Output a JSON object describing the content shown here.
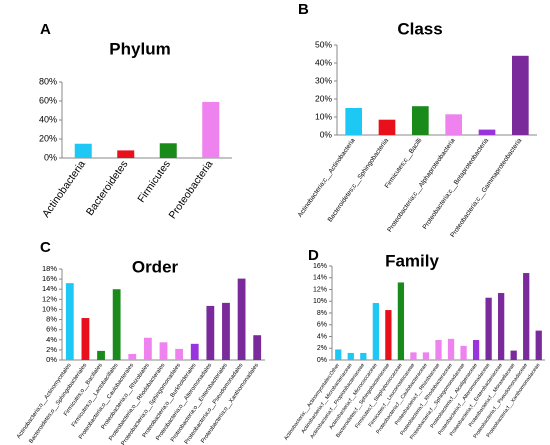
{
  "chart_data": [
    {
      "type": "bar",
      "panel": "A",
      "title": "Phylum",
      "categories": [
        "Actinobacteria",
        "Bacteroidetes",
        "Firmicutes",
        "Proteobacteria"
      ],
      "values": [
        15,
        8,
        15.5,
        59
      ],
      "colors": [
        "#1ec8f5",
        "#e8101a",
        "#1a8a1a",
        "#ee82ee"
      ],
      "ylim": [
        0,
        80
      ],
      "yticks": [
        {
          "value": 0,
          "label": "0%"
        },
        {
          "value": 20,
          "label": "20%"
        },
        {
          "value": 40,
          "label": "40%"
        },
        {
          "value": 60,
          "label": "60%"
        },
        {
          "value": 80,
          "label": "80%"
        }
      ]
    },
    {
      "type": "bar",
      "panel": "B",
      "title": "Class",
      "categories": [
        "Actinobacteria;c__Actinobacteria",
        "Bacteroidetes;c__Sphingobacteriia",
        "Firmicutes;c__Bacilli",
        "Proteobacteria;c__Alphaproteobacteria",
        "Proteobacteria;c__Betaproteobacteria",
        "Proteobacteria;c__Gammaproteobacteria"
      ],
      "values": [
        15,
        8.5,
        16,
        11.5,
        3,
        44
      ],
      "colors": [
        "#1ec8f5",
        "#e8101a",
        "#1a8a1a",
        "#ee82ee",
        "#9933dd",
        "#7a2a9a"
      ],
      "ylim": [
        0,
        50
      ],
      "yticks": [
        {
          "value": 0,
          "label": "0%"
        },
        {
          "value": 10,
          "label": "10%"
        },
        {
          "value": 20,
          "label": "20%"
        },
        {
          "value": 30,
          "label": "30%"
        },
        {
          "value": 40,
          "label": "40%"
        },
        {
          "value": 50,
          "label": "50%"
        }
      ]
    },
    {
      "type": "bar",
      "panel": "C",
      "title": "Order",
      "categories": [
        "Actinobacteria;o__Actinomycetales",
        "Bacteroidetes;o__Sphingobacteriales",
        "Firmicutes;o__Bacillales",
        "Firmicutes;o__Lactobacillales",
        "Proteobacteria;o__Caulobacterales",
        "Proteobacteria;o__Rhizobiales",
        "Proteobacteria;o__Rhodobacterales",
        "Proteobacteria;o__Sphingomonadales",
        "Proteobacteria;o__Burkholderiales",
        "Proteobacteria;o__Alteromonadales",
        "Proteobacteria;o__Enterobacteriales",
        "Proteobacteria;o__Pseudomonadales",
        "Proteobacteria;o__Xanthomonadales"
      ],
      "values": [
        15.2,
        8.3,
        1.8,
        14,
        1.2,
        4.4,
        3.5,
        2.2,
        3.2,
        10.7,
        11.3,
        16.1,
        4.9
      ],
      "colors": [
        "#1ec8f5",
        "#e8101a",
        "#1a8a1a",
        "#1a8a1a",
        "#ee82ee",
        "#ee82ee",
        "#ee82ee",
        "#ee82ee",
        "#9933dd",
        "#7a2a9a",
        "#7a2a9a",
        "#7a2a9a",
        "#7a2a9a"
      ],
      "ylim": [
        0,
        18
      ],
      "yticks": [
        {
          "value": 0,
          "label": "0%"
        },
        {
          "value": 2,
          "label": "2%"
        },
        {
          "value": 4,
          "label": "4%"
        },
        {
          "value": 6,
          "label": "6%"
        },
        {
          "value": 8,
          "label": "8%"
        },
        {
          "value": 10,
          "label": "10%"
        },
        {
          "value": 12,
          "label": "12%"
        },
        {
          "value": 14,
          "label": "14%"
        },
        {
          "value": 16,
          "label": "16%"
        },
        {
          "value": 18,
          "label": "18%"
        }
      ]
    },
    {
      "type": "bar",
      "panel": "D",
      "title": "Family",
      "categories": [
        "Actinobacteria;__Actinomycetales;Other",
        "Actinobacteria;f__Microbacteriaceae",
        "Actinobacteria;f__Propionibacteriaceae",
        "Actinobacteria;f__Micrococcaceae",
        "Bacteroidetes;f__Sphingobacteriaceae",
        "Firmicutes;f__Staphylococcaceae",
        "Firmicutes;f__Leuconostocaceae",
        "Proteobacteria;f__Caulobacteraceae",
        "Proteobacteria;f__Rhizobiaceae",
        "Proteobacteria;f__Rhodobacteraceae",
        "Proteobacteria;f__Sphingomonadaceae",
        "Proteobacteria;f__Alcaligenaceae",
        "Proteobacteria;f__Alteromonadaceae",
        "Proteobacteria;f__Enterobacteriaceae",
        "Proteobacteria;f__Moraxellaceae",
        "Proteobacteria;f__Pseudomonadaceae",
        "Proteobacteria;f__Xanthomonadaceae"
      ],
      "values": [
        1.8,
        1.2,
        1.2,
        9.7,
        8.5,
        13.2,
        1.3,
        1.3,
        3.4,
        3.6,
        2.4,
        3.4,
        10.6,
        11.4,
        1.6,
        14.8,
        5
      ],
      "colors": [
        "#1ec8f5",
        "#1ec8f5",
        "#1ec8f5",
        "#1ec8f5",
        "#e8101a",
        "#1a8a1a",
        "#ee82ee",
        "#ee82ee",
        "#ee82ee",
        "#ee82ee",
        "#ee82ee",
        "#9933dd",
        "#7a2a9a",
        "#7a2a9a",
        "#7a2a9a",
        "#7a2a9a",
        "#7a2a9a"
      ],
      "ylim": [
        0,
        16
      ],
      "yticks": [
        {
          "value": 0,
          "label": "0%"
        },
        {
          "value": 2,
          "label": "2%"
        },
        {
          "value": 4,
          "label": "4%"
        },
        {
          "value": 6,
          "label": "6%"
        },
        {
          "value": 8,
          "label": "8%"
        },
        {
          "value": 10,
          "label": "10%"
        },
        {
          "value": 12,
          "label": "12%"
        },
        {
          "value": 14,
          "label": "14%"
        },
        {
          "value": 16,
          "label": "16%"
        }
      ]
    }
  ]
}
